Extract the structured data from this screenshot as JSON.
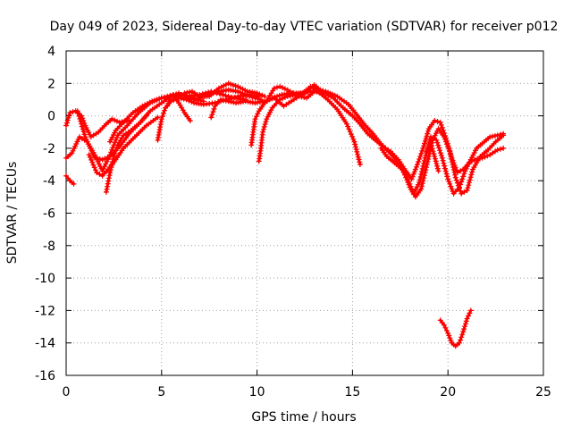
{
  "chart_data": {
    "type": "line",
    "title": "Day 049 of 2023, Sidereal Day-to-day VTEC variation (SDTVAR) for receiver p012",
    "xlabel": "GPS time / hours",
    "ylabel": "SDTVAR / TECUs",
    "xlim": [
      0,
      25
    ],
    "ylim": [
      -16,
      4
    ],
    "xticks": [
      0,
      5,
      10,
      15,
      20,
      25
    ],
    "yticks": [
      -16,
      -14,
      -12,
      -10,
      -8,
      -6,
      -4,
      -2,
      0,
      2,
      4
    ],
    "grid": true,
    "marker": "+",
    "color": "#ff0000",
    "series": [
      {
        "name": "track-1",
        "x": [
          0.0,
          0.3,
          0.7,
          1.1,
          1.5,
          1.9,
          2.3,
          2.7,
          3.2,
          3.8,
          4.4,
          5.0,
          5.6,
          6.2
        ],
        "y": [
          -2.6,
          -2.3,
          -1.3,
          -1.6,
          -2.4,
          -3.4,
          -2.4,
          -1.2,
          -0.6,
          0.2,
          0.8,
          1.1,
          1.2,
          1.3
        ]
      },
      {
        "name": "track-2",
        "x": [
          0.0,
          0.2,
          0.5,
          0.8,
          1.0,
          1.3,
          1.7,
          2.1,
          2.4,
          2.8,
          3.3
        ],
        "y": [
          -0.6,
          0.2,
          0.3,
          0.0,
          -0.6,
          -1.3,
          -1.0,
          -0.5,
          -0.2,
          -0.4,
          -0.3
        ]
      },
      {
        "name": "track-3",
        "x": [
          0.6,
          1.0,
          1.5,
          1.9,
          2.3,
          2.8,
          3.3,
          3.8,
          4.2
        ],
        "y": [
          0.3,
          -1.3,
          -2.6,
          -2.7,
          -2.5,
          -1.9,
          -1.1,
          -0.5,
          0.0
        ]
      },
      {
        "name": "track-4",
        "x": [
          0.0,
          0.2,
          0.4
        ],
        "y": [
          -3.7,
          -4.0,
          -4.2
        ]
      },
      {
        "name": "track-5",
        "x": [
          1.2,
          1.6,
          1.9,
          2.2,
          2.6,
          3.0,
          3.6,
          4.2,
          4.8
        ],
        "y": [
          -2.4,
          -3.5,
          -3.7,
          -3.3,
          -2.7,
          -2.0,
          -1.3,
          -0.6,
          -0.1
        ]
      },
      {
        "name": "track-6",
        "x": [
          2.1,
          2.3,
          2.5,
          2.7,
          3.0,
          3.4,
          3.9,
          4.4,
          5.0,
          5.5,
          6.0,
          6.6,
          7.2
        ],
        "y": [
          -4.7,
          -3.5,
          -2.5,
          -1.8,
          -1.2,
          -0.9,
          -0.4,
          0.3,
          0.8,
          1.2,
          1.3,
          1.1,
          0.9
        ]
      },
      {
        "name": "track-7",
        "x": [
          2.3,
          2.6,
          3.0,
          3.5,
          4.0,
          4.5,
          5.0,
          5.6,
          6.3,
          7.0,
          7.6,
          8.2,
          8.8,
          9.4
        ],
        "y": [
          -1.6,
          -0.9,
          -0.4,
          0.2,
          0.6,
          0.9,
          1.1,
          1.3,
          1.2,
          1.3,
          1.5,
          1.3,
          1.1,
          1.0
        ]
      },
      {
        "name": "track-8",
        "x": [
          4.8,
          5.0,
          5.2,
          5.5,
          5.9,
          6.3,
          6.7,
          7.2,
          7.8,
          8.4,
          9.0,
          9.6,
          10.1
        ],
        "y": [
          -1.5,
          -0.2,
          0.5,
          0.9,
          1.1,
          1.0,
          0.8,
          0.7,
          0.8,
          1.0,
          1.2,
          1.3,
          1.2
        ]
      },
      {
        "name": "track-9",
        "x": [
          5.3,
          5.5,
          5.9,
          6.3,
          6.8,
          7.4,
          8.0,
          8.5,
          9.0,
          9.6,
          10.2
        ],
        "y": [
          0.6,
          1.2,
          1.4,
          1.1,
          1.0,
          1.3,
          1.5,
          1.6,
          1.5,
          1.2,
          1.0
        ]
      },
      {
        "name": "track-10",
        "x": [
          5.6,
          5.9,
          6.2,
          6.5
        ],
        "y": [
          1.3,
          0.8,
          0.2,
          -0.3
        ]
      },
      {
        "name": "track-11",
        "x": [
          6.2,
          6.6,
          7.0,
          7.5,
          8.0,
          8.5,
          9.0,
          9.5,
          10.0,
          10.4
        ],
        "y": [
          1.4,
          1.5,
          1.2,
          1.2,
          1.7,
          2.0,
          1.8,
          1.5,
          1.4,
          1.2
        ]
      },
      {
        "name": "track-12",
        "x": [
          7.6,
          7.8,
          8.1,
          8.5,
          8.9,
          9.4,
          9.9,
          10.4,
          10.9
        ],
        "y": [
          -0.1,
          0.6,
          1.0,
          0.9,
          0.8,
          0.9,
          0.8,
          0.9,
          1.1
        ]
      },
      {
        "name": "track-13",
        "x": [
          9.7,
          9.8,
          9.9,
          10.1,
          10.4,
          10.8,
          11.3,
          11.8,
          12.3,
          12.8,
          13.3
        ],
        "y": [
          -1.8,
          -1.0,
          -0.2,
          0.3,
          0.8,
          1.1,
          1.3,
          1.4,
          1.4,
          1.5,
          1.6
        ]
      },
      {
        "name": "track-14",
        "x": [
          10.1,
          10.2,
          10.3,
          10.5,
          10.8,
          11.2,
          11.6,
          12.0,
          12.5,
          13.0,
          13.4
        ],
        "y": [
          -2.8,
          -2.0,
          -1.0,
          -0.2,
          0.5,
          1.0,
          1.2,
          1.3,
          1.4,
          1.9,
          1.5
        ]
      },
      {
        "name": "track-15",
        "x": [
          10.6,
          10.9,
          11.2,
          11.6,
          12.0,
          12.4,
          12.8,
          13.2,
          13.7,
          14.2,
          14.7,
          15.1,
          15.4
        ],
        "y": [
          1.1,
          1.7,
          1.8,
          1.6,
          1.3,
          1.4,
          1.8,
          1.5,
          1.0,
          0.4,
          -0.5,
          -1.6,
          -3.0
        ]
      },
      {
        "name": "track-16",
        "x": [
          11.0,
          11.4,
          11.8,
          12.2,
          12.6,
          13.0,
          13.5,
          14.0,
          14.5,
          15.0,
          15.4,
          15.8,
          16.2,
          16.6,
          17.0,
          17.4,
          17.8,
          18.1,
          18.4,
          18.7,
          19.0,
          19.3,
          19.6,
          19.9,
          20.2,
          20.5,
          20.8,
          21.1,
          21.4,
          21.8,
          22.2,
          22.6,
          22.9
        ],
        "y": [
          1.0,
          0.6,
          0.9,
          1.2,
          1.1,
          1.5,
          1.4,
          1.1,
          0.5,
          0.0,
          -0.5,
          -1.1,
          -1.5,
          -1.9,
          -2.2,
          -2.7,
          -3.4,
          -3.9,
          -3.0,
          -2.0,
          -0.8,
          -0.3,
          -0.4,
          -1.4,
          -2.6,
          -3.5,
          -3.3,
          -2.9,
          -2.7,
          -2.6,
          -2.4,
          -2.1,
          -2.0
        ]
      },
      {
        "name": "track-17",
        "x": [
          13.0,
          13.6,
          14.2,
          14.8,
          15.2,
          15.6,
          16.0,
          16.4,
          16.8,
          17.2,
          17.6,
          18.0,
          18.3,
          18.6,
          18.9,
          19.2,
          19.5,
          19.8,
          20.1,
          20.4,
          20.7,
          21.0,
          21.3,
          21.7,
          22.1,
          22.5,
          22.9
        ],
        "y": [
          1.7,
          1.5,
          1.2,
          0.7,
          0.1,
          -0.5,
          -1.0,
          -1.6,
          -2.1,
          -2.6,
          -3.2,
          -4.4,
          -5.0,
          -4.5,
          -3.0,
          -1.5,
          -0.8,
          -1.3,
          -2.2,
          -3.8,
          -4.8,
          -4.6,
          -3.3,
          -2.5,
          -2.1,
          -1.6,
          -1.2
        ]
      },
      {
        "name": "track-18",
        "x": [
          16.5,
          16.8,
          17.2,
          17.6,
          17.9,
          18.2,
          18.5,
          18.8,
          19.1,
          19.4,
          19.7,
          20.0,
          20.3,
          20.6,
          20.9,
          21.2,
          21.5,
          21.8,
          22.2,
          22.6,
          22.9
        ],
        "y": [
          -2.0,
          -2.5,
          -2.9,
          -3.3,
          -3.9,
          -4.8,
          -4.1,
          -2.6,
          -1.3,
          -1.5,
          -2.6,
          -3.9,
          -4.8,
          -4.4,
          -3.4,
          -2.7,
          -2.0,
          -1.7,
          -1.3,
          -1.2,
          -1.1
        ]
      },
      {
        "name": "track-19",
        "x": [
          18.9,
          19.1,
          19.3,
          19.5
        ],
        "y": [
          -2.2,
          -1.7,
          -2.5,
          -3.4
        ]
      },
      {
        "name": "track-20",
        "x": [
          19.6,
          19.8,
          20.0,
          20.2,
          20.4,
          20.6,
          20.8,
          21.0,
          21.2
        ],
        "y": [
          -12.6,
          -12.9,
          -13.4,
          -14.0,
          -14.2,
          -14.0,
          -13.3,
          -12.5,
          -12.0
        ]
      }
    ]
  }
}
